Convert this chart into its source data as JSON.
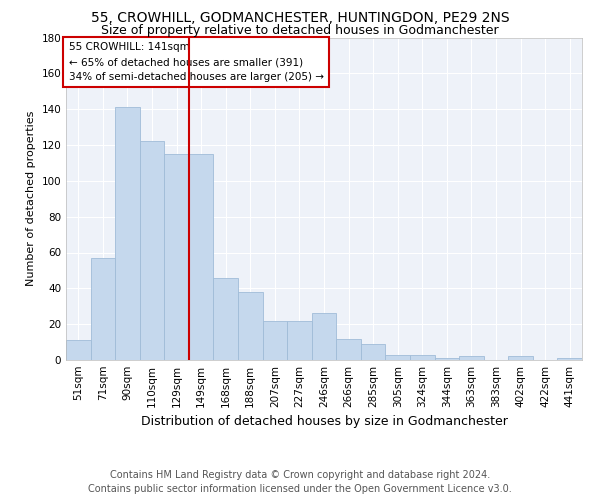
{
  "title": "55, CROWHILL, GODMANCHESTER, HUNTINGDON, PE29 2NS",
  "subtitle": "Size of property relative to detached houses in Godmanchester",
  "xlabel": "Distribution of detached houses by size in Godmanchester",
  "ylabel": "Number of detached properties",
  "bar_labels": [
    "51sqm",
    "71sqm",
    "90sqm",
    "110sqm",
    "129sqm",
    "149sqm",
    "168sqm",
    "188sqm",
    "207sqm",
    "227sqm",
    "246sqm",
    "266sqm",
    "285sqm",
    "305sqm",
    "324sqm",
    "344sqm",
    "363sqm",
    "383sqm",
    "402sqm",
    "422sqm",
    "441sqm"
  ],
  "bar_values": [
    11,
    57,
    141,
    122,
    115,
    115,
    46,
    38,
    22,
    22,
    26,
    12,
    9,
    3,
    3,
    1,
    2,
    0,
    2,
    0,
    1
  ],
  "bar_color": "#c5d8ed",
  "bar_edgecolor": "#a0bcd8",
  "vline_x_index": 4.5,
  "annotation_line1": "55 CROWHILL: 141sqm",
  "annotation_line2": "← 65% of detached houses are smaller (391)",
  "annotation_line3": "34% of semi-detached houses are larger (205) →",
  "vline_color": "#cc0000",
  "annotation_box_edgecolor": "#cc0000",
  "ylim": [
    0,
    180
  ],
  "yticks": [
    0,
    20,
    40,
    60,
    80,
    100,
    120,
    140,
    160,
    180
  ],
  "background_color": "#eef2f9",
  "footer_line1": "Contains HM Land Registry data © Crown copyright and database right 2024.",
  "footer_line2": "Contains public sector information licensed under the Open Government Licence v3.0.",
  "title_fontsize": 10,
  "subtitle_fontsize": 9,
  "xlabel_fontsize": 9,
  "ylabel_fontsize": 8,
  "tick_fontsize": 7.5,
  "annotation_fontsize": 7.5,
  "footer_fontsize": 7
}
